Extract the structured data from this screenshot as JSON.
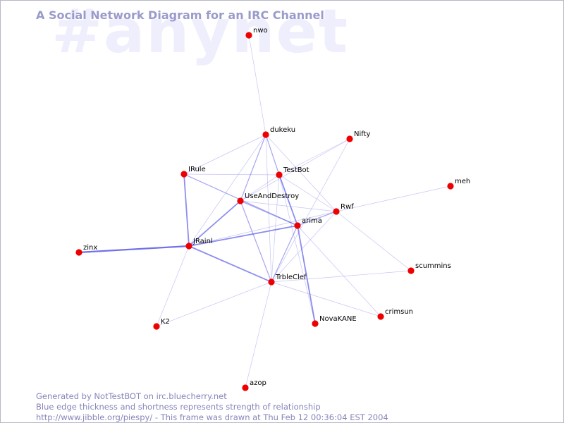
{
  "watermark": "#anynet",
  "title": "A Social Network Diagram for an IRC Channel",
  "footer": {
    "line1": "Generated by NotTestBOT on irc.bluecherry.net",
    "line2": "Blue edge thickness and shortness represents strength of relationship",
    "line3": "http://www.jibble.org/piespy/ - This frame was drawn at Thu Feb 12 00:36:04 EST 2004"
  },
  "colors": {
    "node": "#ee0000",
    "edge": "#5a5ae6",
    "title": "#9a9acc",
    "watermark": "#eeeefc",
    "footer": "#8585bb"
  },
  "nodes": [
    {
      "id": "nwo",
      "label": "nwo"
    },
    {
      "id": "dukeku",
      "label": "dukeku"
    },
    {
      "id": "Nifty",
      "label": "Nifty"
    },
    {
      "id": "IRule",
      "label": "IRule"
    },
    {
      "id": "TestBot",
      "label": "TestBot"
    },
    {
      "id": "meh",
      "label": "meh"
    },
    {
      "id": "UseAndDestroy",
      "label": "UseAndDestroy"
    },
    {
      "id": "Rwf",
      "label": "Rwf"
    },
    {
      "id": "arima",
      "label": "arima"
    },
    {
      "id": "zinx",
      "label": "zinx"
    },
    {
      "id": "JRainl",
      "label": "JRainl"
    },
    {
      "id": "scummins",
      "label": "scummins"
    },
    {
      "id": "TrbleClef",
      "label": "TrbleClef"
    },
    {
      "id": "crimsun",
      "label": "crimsun"
    },
    {
      "id": "NovaKANE",
      "label": "NovaKANE"
    },
    {
      "id": "K2",
      "label": "K2"
    },
    {
      "id": "azop",
      "label": "azop"
    }
  ],
  "edges": [
    {
      "from": "nwo",
      "to": "dukeku",
      "weight": 1
    },
    {
      "from": "dukeku",
      "to": "TestBot",
      "weight": 2
    },
    {
      "from": "dukeku",
      "to": "IRule",
      "weight": 1
    },
    {
      "from": "dukeku",
      "to": "UseAndDestroy",
      "weight": 2
    },
    {
      "from": "dukeku",
      "to": "Rwf",
      "weight": 1
    },
    {
      "from": "dukeku",
      "to": "TrbleClef",
      "weight": 1
    },
    {
      "from": "dukeku",
      "to": "JRainl",
      "weight": 1
    },
    {
      "from": "Nifty",
      "to": "TestBot",
      "weight": 1
    },
    {
      "from": "Nifty",
      "to": "UseAndDestroy",
      "weight": 1
    },
    {
      "from": "Nifty",
      "to": "TrbleClef",
      "weight": 1
    },
    {
      "from": "IRule",
      "to": "TestBot",
      "weight": 1
    },
    {
      "from": "IRule",
      "to": "JRainl",
      "weight": 3
    },
    {
      "from": "IRule",
      "to": "arima",
      "weight": 2
    },
    {
      "from": "TestBot",
      "to": "UseAndDestroy",
      "weight": 1
    },
    {
      "from": "TestBot",
      "to": "arima",
      "weight": 3
    },
    {
      "from": "TestBot",
      "to": "Rwf",
      "weight": 1
    },
    {
      "from": "TestBot",
      "to": "TrbleClef",
      "weight": 1
    },
    {
      "from": "TestBot",
      "to": "NovaKANE",
      "weight": 1
    },
    {
      "from": "meh",
      "to": "Rwf",
      "weight": 1
    },
    {
      "from": "UseAndDestroy",
      "to": "arima",
      "weight": 2
    },
    {
      "from": "UseAndDestroy",
      "to": "JRainl",
      "weight": 3
    },
    {
      "from": "UseAndDestroy",
      "to": "TrbleClef",
      "weight": 2
    },
    {
      "from": "UseAndDestroy",
      "to": "Rwf",
      "weight": 1
    },
    {
      "from": "Rwf",
      "to": "arima",
      "weight": 2
    },
    {
      "from": "Rwf",
      "to": "scummins",
      "weight": 1
    },
    {
      "from": "Rwf",
      "to": "TrbleClef",
      "weight": 1
    },
    {
      "from": "Rwf",
      "to": "JRainl",
      "weight": 1
    },
    {
      "from": "arima",
      "to": "JRainl",
      "weight": 3
    },
    {
      "from": "arima",
      "to": "TrbleClef",
      "weight": 2
    },
    {
      "from": "arima",
      "to": "NovaKANE",
      "weight": 3
    },
    {
      "from": "arima",
      "to": "crimsun",
      "weight": 1
    },
    {
      "from": "zinx",
      "to": "JRainl",
      "weight": 4
    },
    {
      "from": "JRainl",
      "to": "TrbleClef",
      "weight": 3
    },
    {
      "from": "JRainl",
      "to": "K2",
      "weight": 1
    },
    {
      "from": "TrbleClef",
      "to": "K2",
      "weight": 1
    },
    {
      "from": "TrbleClef",
      "to": "azop",
      "weight": 1
    },
    {
      "from": "TrbleClef",
      "to": "crimsun",
      "weight": 1
    },
    {
      "from": "TrbleClef",
      "to": "scummins",
      "weight": 1
    }
  ]
}
